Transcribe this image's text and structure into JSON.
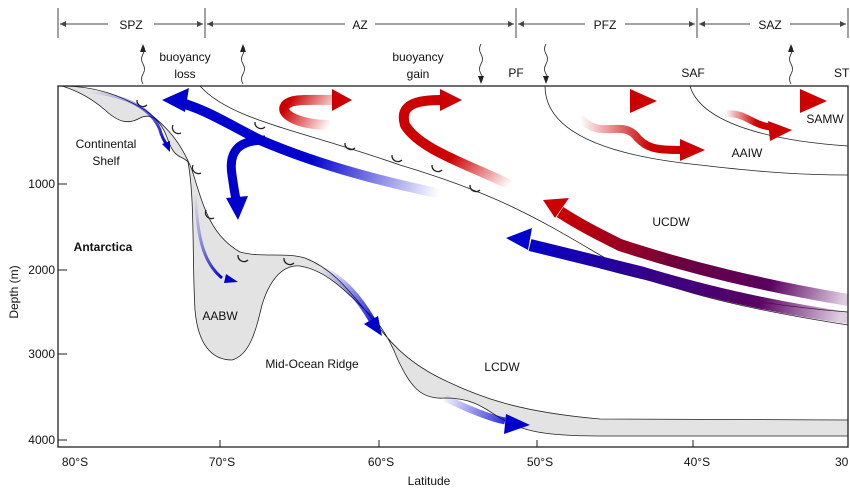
{
  "zones": [
    {
      "label": "SPZ"
    },
    {
      "label": "AZ"
    },
    {
      "label": "PFZ"
    },
    {
      "label": "SAZ"
    }
  ],
  "surface_labels": {
    "buoyancy_loss_1": "buoyancy",
    "buoyancy_loss_2": "loss",
    "buoyancy_gain_1": "buoyancy",
    "buoyancy_gain_2": "gain",
    "pf": "PF",
    "saf": "SAF",
    "stf": "ST"
  },
  "water_masses": {
    "samw": "SAMW",
    "aaiw": "AAIW",
    "ucdw": "UCDW",
    "lcdw": "LCDW",
    "aabw": "AABW"
  },
  "features": {
    "continental_shelf_1": "Continental",
    "continental_shelf_2": "Shelf",
    "antarctica": "Antarctica",
    "mid_ocean_ridge": "Mid-Ocean Ridge"
  },
  "axes": {
    "xlabel": "Latitude",
    "ylabel": "Depth (m)",
    "xticks": [
      "80°S",
      "70°S",
      "60°S",
      "50°S",
      "40°S",
      "30"
    ],
    "yticks": [
      "1000",
      "2000",
      "3000",
      "4000"
    ]
  },
  "colors": {
    "red": "#cc0000",
    "blue": "#0000cc",
    "purple": "#5a0060",
    "bottom_water": "#e3e3e3"
  }
}
